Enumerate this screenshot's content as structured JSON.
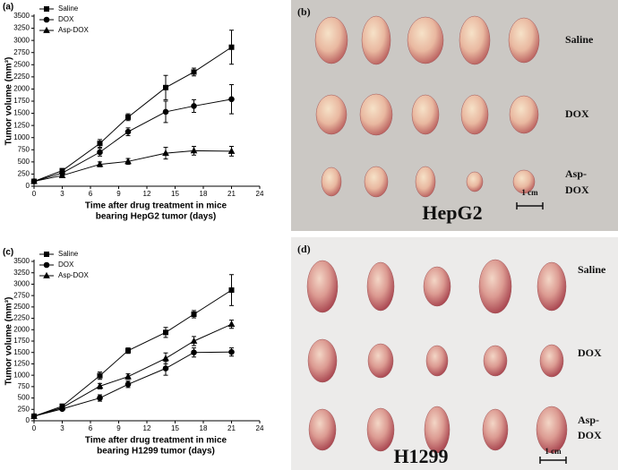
{
  "chart_data": [
    {
      "type": "line",
      "panel_label": "(a)",
      "ylabel": "Tumor volume (mm³)",
      "xlabel": [
        "Time after drug treatment in mice",
        "bearing HepG2 tumor (days)"
      ],
      "x": [
        0,
        3,
        7,
        10,
        14,
        17,
        21
      ],
      "xlim": [
        0,
        24
      ],
      "xticks": [
        0,
        3,
        6,
        9,
        12,
        15,
        18,
        21,
        24
      ],
      "ylim": [
        0,
        3500
      ],
      "yticks": [
        0,
        250,
        500,
        750,
        1000,
        1250,
        1500,
        1750,
        2000,
        2250,
        2500,
        2750,
        3000,
        3250,
        3500
      ],
      "legend": "upper left",
      "series": [
        {
          "name": "Saline",
          "color": "#000000",
          "marker": "square",
          "values": [
            100,
            320,
            880,
            1420,
            2030,
            2350,
            2860
          ],
          "errors": [
            30,
            40,
            80,
            70,
            250,
            80,
            350
          ]
        },
        {
          "name": "DOX",
          "color": "#000000",
          "marker": "circle",
          "values": [
            100,
            270,
            700,
            1120,
            1530,
            1650,
            1790
          ],
          "errors": [
            20,
            40,
            80,
            80,
            220,
            130,
            300
          ]
        },
        {
          "name": "Asp-DOX",
          "color": "#000000",
          "marker": "triangle",
          "values": [
            100,
            220,
            450,
            510,
            680,
            730,
            720
          ],
          "errors": [
            20,
            30,
            50,
            60,
            120,
            90,
            100
          ]
        }
      ]
    },
    {
      "type": "line",
      "panel_label": "(c)",
      "ylabel": "Tumor volume (mm³)",
      "xlabel": [
        "Time after drug treatment in mice",
        "bearing H1299 tumor (days)"
      ],
      "x": [
        0,
        3,
        7,
        10,
        14,
        17,
        21
      ],
      "xlim": [
        0,
        24
      ],
      "xticks": [
        0,
        3,
        6,
        9,
        12,
        15,
        18,
        21,
        24
      ],
      "ylim": [
        0,
        3500
      ],
      "yticks": [
        0,
        250,
        500,
        750,
        1000,
        1250,
        1500,
        1750,
        2000,
        2250,
        2500,
        2750,
        3000,
        3250,
        3500
      ],
      "legend": "upper left",
      "series": [
        {
          "name": "Saline",
          "color": "#000000",
          "marker": "square",
          "values": [
            100,
            320,
            990,
            1540,
            1940,
            2340,
            2870
          ],
          "errors": [
            20,
            30,
            80,
            60,
            110,
            80,
            340
          ]
        },
        {
          "name": "DOX",
          "color": "#000000",
          "marker": "circle",
          "values": [
            100,
            260,
            500,
            800,
            1150,
            1500,
            1510
          ],
          "errors": [
            20,
            30,
            70,
            70,
            150,
            100,
            90
          ]
        },
        {
          "name": "Asp-DOX",
          "color": "#000000",
          "marker": "triangle",
          "values": [
            100,
            290,
            760,
            970,
            1370,
            1750,
            2120
          ],
          "errors": [
            20,
            30,
            60,
            60,
            120,
            100,
            90
          ]
        }
      ]
    }
  ],
  "photos": [
    {
      "panel_label": "(b)",
      "rows": [
        [
          "Saline"
        ],
        [
          "DOX"
        ],
        [
          "Asp-",
          "DOX"
        ]
      ],
      "cell_line": "HepG2",
      "scale": "1 cm"
    },
    {
      "panel_label": "(d)",
      "rows": [
        [
          "Saline"
        ],
        [
          "DOX"
        ],
        [
          "Asp-",
          "DOX"
        ]
      ],
      "cell_line": "H1299",
      "scale": "1 cm"
    }
  ]
}
